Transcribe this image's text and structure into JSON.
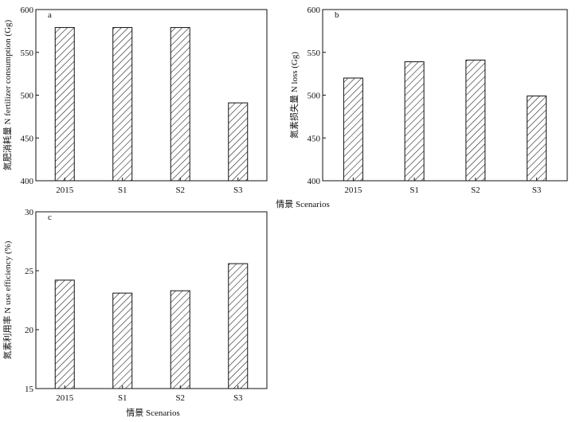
{
  "chart_data": [
    {
      "type": "bar",
      "panel_label": "a",
      "categories": [
        "2015",
        "S1",
        "S2",
        "S3"
      ],
      "values": [
        579,
        579,
        579,
        491
      ],
      "ylabel": "氮肥消耗量 N fertilizer consumption (Gg)",
      "ylim": [
        400,
        600
      ],
      "yticks": [
        400,
        450,
        500,
        550,
        600
      ],
      "bar_fill": "diagonal-hatch"
    },
    {
      "type": "bar",
      "panel_label": "b",
      "categories": [
        "2015",
        "S1",
        "S2",
        "S3"
      ],
      "values": [
        520,
        539,
        541,
        499
      ],
      "ylabel": "氮素损失量 N loss (Gg)",
      "ylim": [
        400,
        600
      ],
      "yticks": [
        400,
        450,
        500,
        550,
        600
      ],
      "bar_fill": "diagonal-hatch"
    },
    {
      "type": "bar",
      "panel_label": "c",
      "categories": [
        "2015",
        "S1",
        "S2",
        "S3"
      ],
      "values": [
        24.2,
        23.1,
        23.3,
        25.6
      ],
      "ylabel": "氮素利用率 N use efficiency (%)",
      "ylim": [
        15,
        30
      ],
      "yticks": [
        15,
        20,
        25,
        30
      ],
      "bar_fill": "diagonal-hatch"
    }
  ],
  "shared_xlabel_top": "情景 Scenarios",
  "shared_xlabel_bottom": "情景 Scenarios",
  "colors": {
    "axis": "#111111",
    "hatch": "#222222",
    "background": "#ffffff"
  }
}
